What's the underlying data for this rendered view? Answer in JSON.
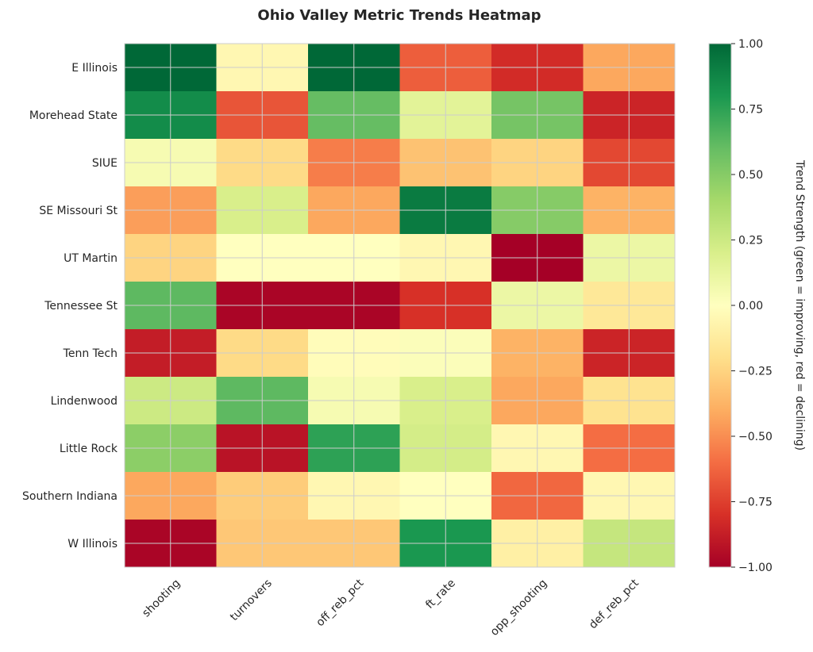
{
  "chart_data": {
    "type": "heatmap",
    "title": "Ohio Valley Metric Trends Heatmap",
    "columns": [
      "shooting",
      "turnovers",
      "off_reb_pct",
      "ft_rate",
      "opp_shooting",
      "def_reb_pct"
    ],
    "rows": [
      "E Illinois",
      "Morehead State",
      "SIUE",
      "SE Missouri St",
      "UT Martin",
      "Tennessee St",
      "Tenn Tech",
      "Lindenwood",
      "Little Rock",
      "Southern Indiana",
      "W Illinois"
    ],
    "values": [
      [
        1.0,
        -0.05,
        1.0,
        -0.65,
        -0.82,
        -0.42
      ],
      [
        0.85,
        -0.68,
        0.6,
        0.15,
        0.55,
        -0.85
      ],
      [
        0.05,
        -0.22,
        -0.55,
        -0.32,
        -0.25,
        -0.72
      ],
      [
        -0.45,
        0.2,
        -0.42,
        0.92,
        0.5,
        -0.38
      ],
      [
        -0.25,
        0.0,
        0.0,
        -0.05,
        -1.0,
        0.1
      ],
      [
        0.62,
        -0.98,
        -0.98,
        -0.8,
        0.1,
        -0.15
      ],
      [
        -0.88,
        -0.22,
        -0.02,
        0.02,
        -0.38,
        -0.85
      ],
      [
        0.25,
        0.62,
        0.05,
        0.2,
        -0.42,
        -0.18
      ],
      [
        0.48,
        -0.92,
        0.75,
        0.22,
        -0.05,
        -0.6
      ],
      [
        -0.42,
        -0.28,
        -0.05,
        -0.0,
        -0.62,
        -0.05
      ],
      [
        -0.98,
        -0.3,
        -0.3,
        0.8,
        -0.1,
        0.28
      ]
    ],
    "vmin": -1.0,
    "vmax": 1.0,
    "colormap": "RdYlGn",
    "colorbar": {
      "label": "Trend Strength (green = improving, red = declining)",
      "ticks": [
        1.0,
        0.75,
        0.5,
        0.25,
        0.0,
        -0.25,
        -0.5,
        -0.75,
        -1.0
      ],
      "tick_labels": [
        "1.00",
        "0.75",
        "0.50",
        "0.25",
        "0.00",
        "−0.25",
        "−0.50",
        "−0.75",
        "−1.00"
      ]
    },
    "grid": true,
    "grid_color": "#cccccc",
    "xtick_rotation": -45
  }
}
